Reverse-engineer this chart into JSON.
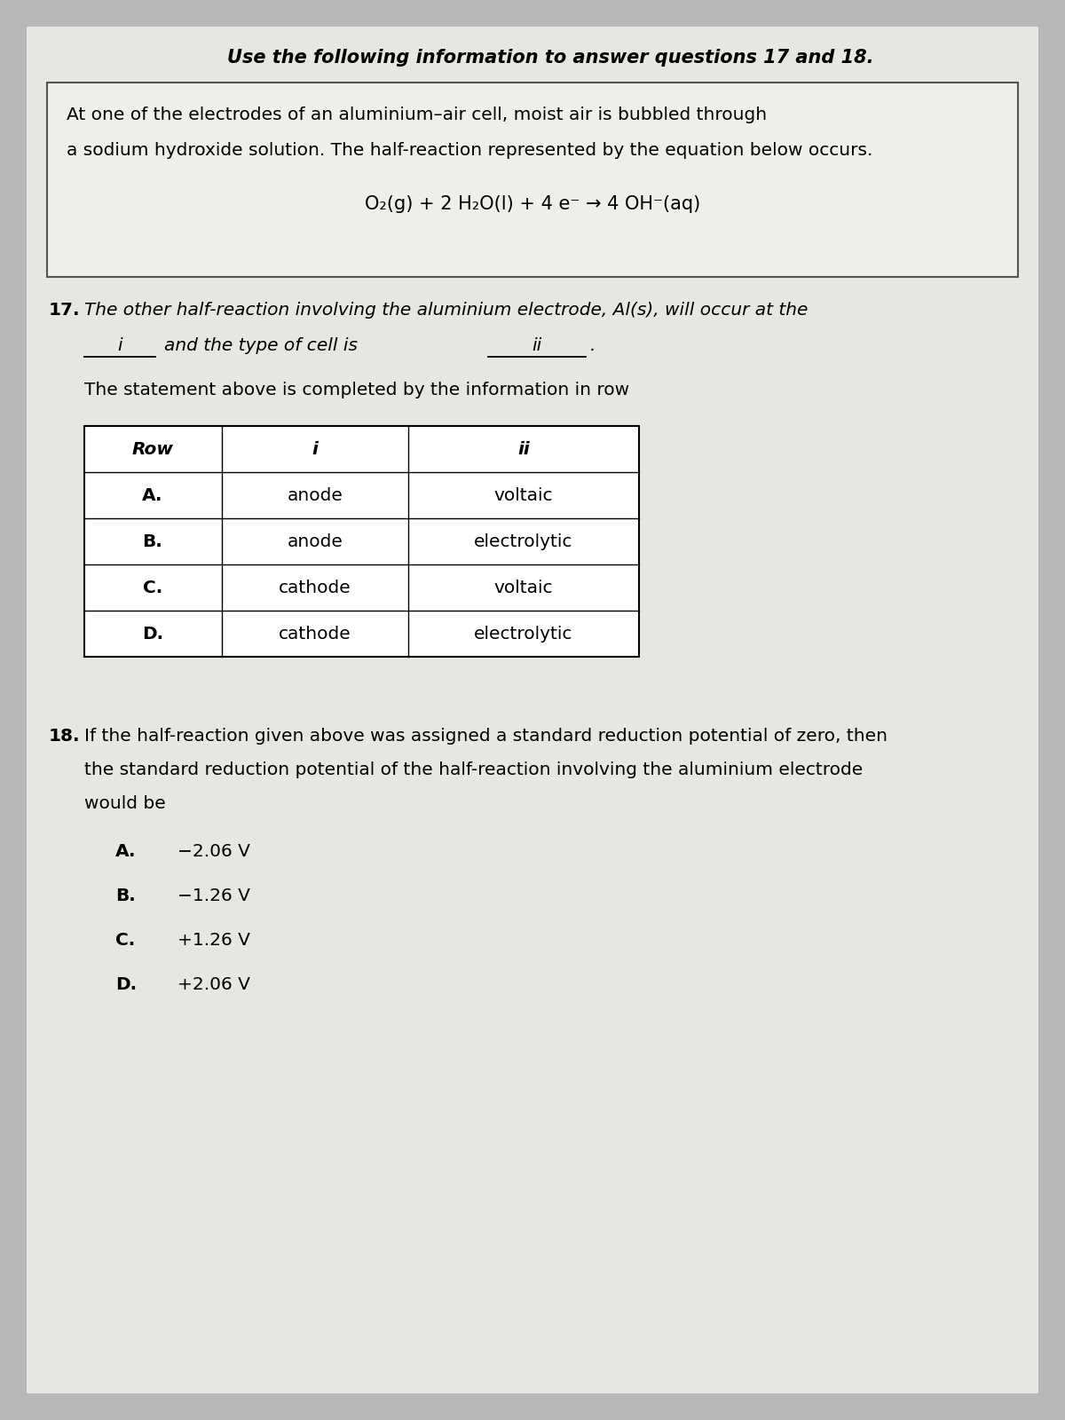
{
  "outer_bg": "#b8b8b8",
  "page_bg": "#e8e6e2",
  "box_bg": "#f0eeea",
  "white": "#ffffff",
  "header_text": "Use the following information to answer questions 17 and 18.",
  "box_line1": "At one of the electrodes of an aluminium–air cell, moist air is bubbled through",
  "box_line2": "a sodium hydroxide solution. The half-reaction represented by the equation below occurs.",
  "equation": "O₂(g) + 2 H₂O(l) + 4 e⁻ → 4 OH⁻(aq)",
  "q17_num": "17.",
  "q17_text": "The other half-reaction involving the aluminium electrode, Al(s), will occur at the",
  "q17_i_label": "i",
  "q17_mid": "and the type of cell is",
  "q17_ii_label": "ii",
  "q17_stmt": "The statement above is completed by the information in row",
  "table_headers": [
    "Row",
    "i",
    "ii"
  ],
  "table_rows": [
    [
      "A.",
      "anode",
      "voltaic"
    ],
    [
      "B.",
      "anode",
      "electrolytic"
    ],
    [
      "C.",
      "cathode",
      "voltaic"
    ],
    [
      "D.",
      "cathode",
      "electrolytic"
    ]
  ],
  "q18_num": "18.",
  "q18_line1": "If the half-reaction given above was assigned a standard reduction potential of zero, then",
  "q18_line2": "the standard reduction potential of the half-reaction involving the aluminium electrode",
  "q18_line3": "would be",
  "q18_options": [
    [
      "A.",
      "−2.06 V"
    ],
    [
      "B.",
      "−1.26 V"
    ],
    [
      "C.",
      "+1.26 V"
    ],
    [
      "D.",
      "+2.06 V"
    ]
  ]
}
